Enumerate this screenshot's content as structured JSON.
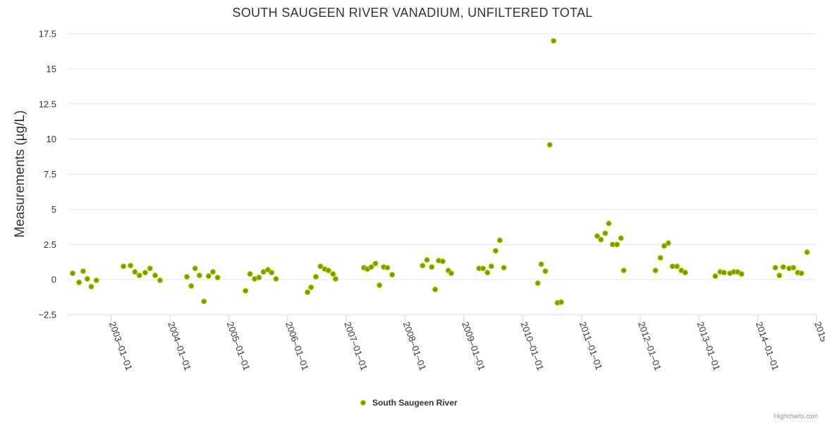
{
  "chart_data": {
    "type": "scatter",
    "title": "SOUTH SAUGEEN RIVER VANADIUM, UNFILTERED TOTAL",
    "ylabel": "Measurements (µg/L)",
    "xlabel": "",
    "ylim": [
      -2.5,
      17.5
    ],
    "yticks": [
      -2.5,
      0,
      2.5,
      5,
      7.5,
      10,
      12.5,
      15,
      17.5
    ],
    "ytick_labels": [
      "−2.5",
      "0",
      "2.5",
      "5",
      "7.5",
      "10",
      "12.5",
      "15",
      "17.5"
    ],
    "xlim": [
      "2002-04-01",
      "2015-01-01"
    ],
    "xticks": [
      "2003-01-01",
      "2004-01-01",
      "2005-01-01",
      "2006-01-01",
      "2007-01-01",
      "2008-01-01",
      "2009-01-01",
      "2010-01-01",
      "2011-01-01",
      "2012-01-01",
      "2013-01-01",
      "2014-01-01",
      "2015-01-01"
    ],
    "xtick_labels": [
      "2003–01–01",
      "2004–01–01",
      "2005–01–01",
      "2006–01–01",
      "2007–01–01",
      "2008–01–01",
      "2009–01–01",
      "2010–01–01",
      "2011–01–01",
      "2012–01–01",
      "2013–01–01",
      "2014–01–01",
      "2015"
    ],
    "grid": true,
    "legend_position": "bottom-center",
    "series": [
      {
        "name": "South Saugeen River",
        "color": "#6ba100",
        "points": [
          [
            "2002-05-06",
            0.45
          ],
          [
            "2002-06-15",
            -0.2
          ],
          [
            "2002-07-10",
            0.6
          ],
          [
            "2002-08-05",
            0.05
          ],
          [
            "2002-08-30",
            -0.5
          ],
          [
            "2002-10-01",
            -0.05
          ],
          [
            "2003-03-18",
            0.95
          ],
          [
            "2003-05-01",
            1.0
          ],
          [
            "2003-05-28",
            0.55
          ],
          [
            "2003-06-25",
            0.3
          ],
          [
            "2003-07-31",
            0.5
          ],
          [
            "2003-08-30",
            0.8
          ],
          [
            "2003-10-01",
            0.3
          ],
          [
            "2003-10-31",
            -0.05
          ],
          [
            "2004-04-15",
            0.2
          ],
          [
            "2004-05-12",
            -0.45
          ],
          [
            "2004-06-05",
            0.8
          ],
          [
            "2004-07-02",
            0.3
          ],
          [
            "2004-07-30",
            -1.55
          ],
          [
            "2004-08-28",
            0.25
          ],
          [
            "2004-09-24",
            0.55
          ],
          [
            "2004-10-23",
            0.15
          ],
          [
            "2005-04-15",
            -0.8
          ],
          [
            "2005-05-12",
            0.4
          ],
          [
            "2005-06-10",
            0.05
          ],
          [
            "2005-07-07",
            0.15
          ],
          [
            "2005-08-04",
            0.55
          ],
          [
            "2005-09-01",
            0.7
          ],
          [
            "2005-09-24",
            0.5
          ],
          [
            "2005-10-21",
            0.05
          ],
          [
            "2006-05-05",
            -0.9
          ],
          [
            "2006-05-27",
            -0.55
          ],
          [
            "2006-06-26",
            0.2
          ],
          [
            "2006-07-24",
            0.95
          ],
          [
            "2006-08-20",
            0.75
          ],
          [
            "2006-09-12",
            0.65
          ],
          [
            "2006-10-11",
            0.4
          ],
          [
            "2006-10-26",
            0.05
          ],
          [
            "2007-04-20",
            0.85
          ],
          [
            "2007-05-12",
            0.75
          ],
          [
            "2007-06-05",
            0.9
          ],
          [
            "2007-07-01",
            1.15
          ],
          [
            "2007-07-26",
            -0.4
          ],
          [
            "2007-08-21",
            0.9
          ],
          [
            "2007-09-13",
            0.85
          ],
          [
            "2007-10-13",
            0.35
          ],
          [
            "2008-04-19",
            1.0
          ],
          [
            "2008-05-16",
            1.4
          ],
          [
            "2008-06-15",
            0.9
          ],
          [
            "2008-07-06",
            -0.7
          ],
          [
            "2008-07-28",
            1.35
          ],
          [
            "2008-08-22",
            1.3
          ],
          [
            "2008-09-26",
            0.65
          ],
          [
            "2008-10-14",
            0.45
          ],
          [
            "2009-04-05",
            0.8
          ],
          [
            "2009-04-30",
            0.8
          ],
          [
            "2009-05-27",
            0.5
          ],
          [
            "2009-06-20",
            0.95
          ],
          [
            "2009-07-17",
            2.05
          ],
          [
            "2009-08-12",
            2.8
          ],
          [
            "2009-09-06",
            0.85
          ],
          [
            "2010-04-05",
            -0.25
          ],
          [
            "2010-04-26",
            1.1
          ],
          [
            "2010-05-22",
            0.6
          ],
          [
            "2010-06-18",
            9.6
          ],
          [
            "2010-07-12",
            17.0
          ],
          [
            "2010-08-05",
            -1.65
          ],
          [
            "2010-08-28",
            -1.6
          ],
          [
            "2011-04-09",
            3.1
          ],
          [
            "2011-05-02",
            2.85
          ],
          [
            "2011-05-29",
            3.3
          ],
          [
            "2011-06-20",
            4.0
          ],
          [
            "2011-07-14",
            2.5
          ],
          [
            "2011-08-10",
            2.5
          ],
          [
            "2011-09-04",
            2.95
          ],
          [
            "2011-09-21",
            0.65
          ],
          [
            "2012-04-05",
            0.65
          ],
          [
            "2012-05-06",
            1.55
          ],
          [
            "2012-05-29",
            2.4
          ],
          [
            "2012-06-24",
            2.6
          ],
          [
            "2012-07-20",
            0.95
          ],
          [
            "2012-08-17",
            0.95
          ],
          [
            "2012-09-13",
            0.65
          ],
          [
            "2012-10-07",
            0.5
          ],
          [
            "2013-04-12",
            0.25
          ],
          [
            "2013-05-12",
            0.55
          ],
          [
            "2013-06-05",
            0.5
          ],
          [
            "2013-07-12",
            0.45
          ],
          [
            "2013-08-05",
            0.55
          ],
          [
            "2013-08-29",
            0.55
          ],
          [
            "2013-09-22",
            0.4
          ],
          [
            "2014-04-20",
            0.85
          ],
          [
            "2014-05-15",
            0.3
          ],
          [
            "2014-06-08",
            0.9
          ],
          [
            "2014-07-15",
            0.8
          ],
          [
            "2014-08-10",
            0.85
          ],
          [
            "2014-09-06",
            0.5
          ],
          [
            "2014-09-29",
            0.45
          ],
          [
            "2014-11-03",
            1.95
          ]
        ]
      }
    ]
  },
  "credits": "Highcharts.com"
}
